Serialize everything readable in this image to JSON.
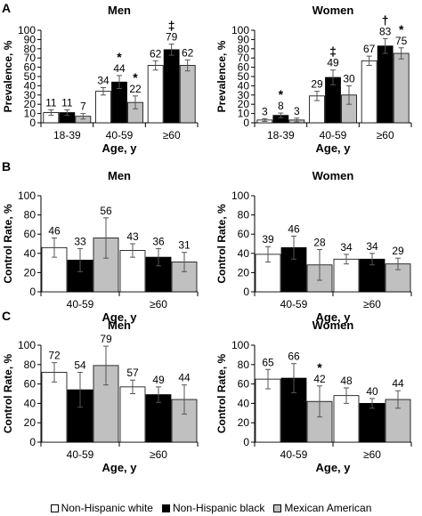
{
  "colors": {
    "bar_stroke": "#000000",
    "axis": "#000000"
  },
  "series_styles": [
    {
      "name": "Non-Hispanic white",
      "color": "#ffffff"
    },
    {
      "name": "Non-Hispanic black",
      "color": "#000000"
    },
    {
      "name": "Mexican American",
      "color": "#c0c0c0"
    }
  ],
  "legend": [
    {
      "label": "Non-Hispanic white",
      "color": "#ffffff"
    },
    {
      "label": "Non-Hispanic black",
      "color": "#000000"
    },
    {
      "label": "Mexican American",
      "color": "#c0c0c0"
    }
  ],
  "panels": [
    {
      "letter": "A"
    },
    {
      "letter": "B"
    },
    {
      "letter": "C"
    }
  ],
  "chart_data": [
    {
      "panel": "A",
      "type": "bar",
      "title": "Men",
      "ylabel": "Prevalence, %",
      "xlabel": "Age, y",
      "ylim": [
        0,
        100
      ],
      "yticks": [
        0,
        10,
        20,
        30,
        40,
        50,
        60,
        70,
        80,
        90,
        100
      ],
      "categories": [
        "18-39",
        "40-59",
        "≥60"
      ],
      "series": [
        {
          "name": "Non-Hispanic white",
          "values": [
            11,
            34,
            62
          ],
          "err": [
            3,
            4,
            5
          ]
        },
        {
          "name": "Non-Hispanic black",
          "values": [
            11,
            44,
            79
          ],
          "err": [
            3,
            7,
            6
          ]
        },
        {
          "name": "Mexican American",
          "values": [
            7,
            22,
            62
          ],
          "err": [
            3,
            7,
            6
          ]
        }
      ],
      "value_labels": [
        [
          "11",
          "11",
          "7"
        ],
        [
          "34",
          "44",
          "22"
        ],
        [
          "62",
          "79",
          "62"
        ]
      ],
      "annotations": [
        {
          "category": 1,
          "series": 1,
          "symbol": "*"
        },
        {
          "category": 1,
          "series": 2,
          "symbol": "*"
        },
        {
          "category": 2,
          "series": 1,
          "symbol": "‡"
        }
      ]
    },
    {
      "panel": "A",
      "type": "bar",
      "title": "Women",
      "ylabel": "Prevalence, %",
      "xlabel": "Age, y",
      "ylim": [
        0,
        100
      ],
      "yticks": [
        0,
        10,
        20,
        30,
        40,
        50,
        60,
        70,
        80,
        90,
        100
      ],
      "categories": [
        "18-39",
        "40-59",
        "≥60"
      ],
      "series": [
        {
          "name": "Non-Hispanic white",
          "values": [
            3,
            29,
            67
          ],
          "err": [
            1.5,
            5,
            5
          ]
        },
        {
          "name": "Non-Hispanic black",
          "values": [
            8,
            49,
            83
          ],
          "err": [
            2.5,
            8,
            8
          ]
        },
        {
          "name": "Mexican American",
          "values": [
            3,
            30,
            75
          ],
          "err": [
            2,
            10,
            6
          ]
        }
      ],
      "value_labels": [
        [
          "3",
          "8",
          "3"
        ],
        [
          "29",
          "49",
          "30"
        ],
        [
          "67",
          "83",
          "75"
        ]
      ],
      "annotations": [
        {
          "category": 0,
          "series": 1,
          "symbol": "*"
        },
        {
          "category": 1,
          "series": 1,
          "symbol": "‡"
        },
        {
          "category": 2,
          "series": 1,
          "symbol": "†"
        },
        {
          "category": 2,
          "series": 2,
          "symbol": "*"
        }
      ]
    },
    {
      "panel": "B",
      "type": "bar",
      "title": "Men",
      "ylabel": "Control Rate, %",
      "xlabel": "Age, y",
      "ylim": [
        0,
        100
      ],
      "yticks": [
        0,
        20,
        40,
        60,
        80,
        100
      ],
      "categories": [
        "40-59",
        "≥60"
      ],
      "series": [
        {
          "name": "Non-Hispanic white",
          "values": [
            46,
            43
          ],
          "err": [
            10,
            7
          ]
        },
        {
          "name": "Non-Hispanic black",
          "values": [
            33,
            36
          ],
          "err": [
            12,
            9
          ]
        },
        {
          "name": "Mexican American",
          "values": [
            56,
            31
          ],
          "err": [
            21,
            10
          ]
        }
      ],
      "value_labels": [
        [
          "46",
          "33",
          "56"
        ],
        [
          "43",
          "36",
          "31"
        ]
      ],
      "annotations": []
    },
    {
      "panel": "B",
      "type": "bar",
      "title": "Women",
      "ylabel": "Control Rate, %",
      "xlabel": "Age, y",
      "ylim": [
        0,
        100
      ],
      "yticks": [
        0,
        20,
        40,
        60,
        80,
        100
      ],
      "categories": [
        "40-59",
        "≥60"
      ],
      "series": [
        {
          "name": "Non-Hispanic white",
          "values": [
            39,
            34
          ],
          "err": [
            8,
            5
          ]
        },
        {
          "name": "Non-Hispanic black",
          "values": [
            46,
            34
          ],
          "err": [
            12,
            6
          ]
        },
        {
          "name": "Mexican American",
          "values": [
            28,
            29
          ],
          "err": [
            16,
            6
          ]
        }
      ],
      "value_labels": [
        [
          "39",
          "46",
          "28"
        ],
        [
          "34",
          "34",
          "29"
        ]
      ],
      "annotations": []
    },
    {
      "panel": "C",
      "type": "bar",
      "title": "Men",
      "ylabel": "Control Rate, %",
      "xlabel": "Age, y",
      "ylim": [
        0,
        100
      ],
      "yticks": [
        0,
        20,
        40,
        60,
        80,
        100
      ],
      "categories": [
        "40-59",
        "≥60"
      ],
      "series": [
        {
          "name": "Non-Hispanic white",
          "values": [
            72,
            57
          ],
          "err": [
            10,
            7
          ]
        },
        {
          "name": "Non-Hispanic black",
          "values": [
            54,
            49
          ],
          "err": [
            18,
            8
          ]
        },
        {
          "name": "Mexican American",
          "values": [
            79,
            44
          ],
          "err": [
            20,
            15
          ]
        }
      ],
      "value_labels": [
        [
          "72",
          "54",
          "79"
        ],
        [
          "57",
          "49",
          "44"
        ]
      ],
      "annotations": []
    },
    {
      "panel": "C",
      "type": "bar",
      "title": "Women",
      "ylabel": "Control Rate, %",
      "xlabel": "Age, y",
      "ylim": [
        0,
        100
      ],
      "yticks": [
        0,
        20,
        40,
        60,
        80,
        100
      ],
      "categories": [
        "40-59",
        "≥60"
      ],
      "series": [
        {
          "name": "Non-Hispanic white",
          "values": [
            65,
            48
          ],
          "err": [
            10,
            8
          ]
        },
        {
          "name": "Non-Hispanic black",
          "values": [
            66,
            40
          ],
          "err": [
            15,
            5
          ]
        },
        {
          "name": "Mexican American",
          "values": [
            42,
            44
          ],
          "err": [
            16,
            9
          ]
        }
      ],
      "value_labels": [
        [
          "65",
          "66",
          "42"
        ],
        [
          "48",
          "40",
          "44"
        ]
      ],
      "annotations": [
        {
          "category": 0,
          "series": 2,
          "symbol": "*"
        }
      ]
    }
  ]
}
